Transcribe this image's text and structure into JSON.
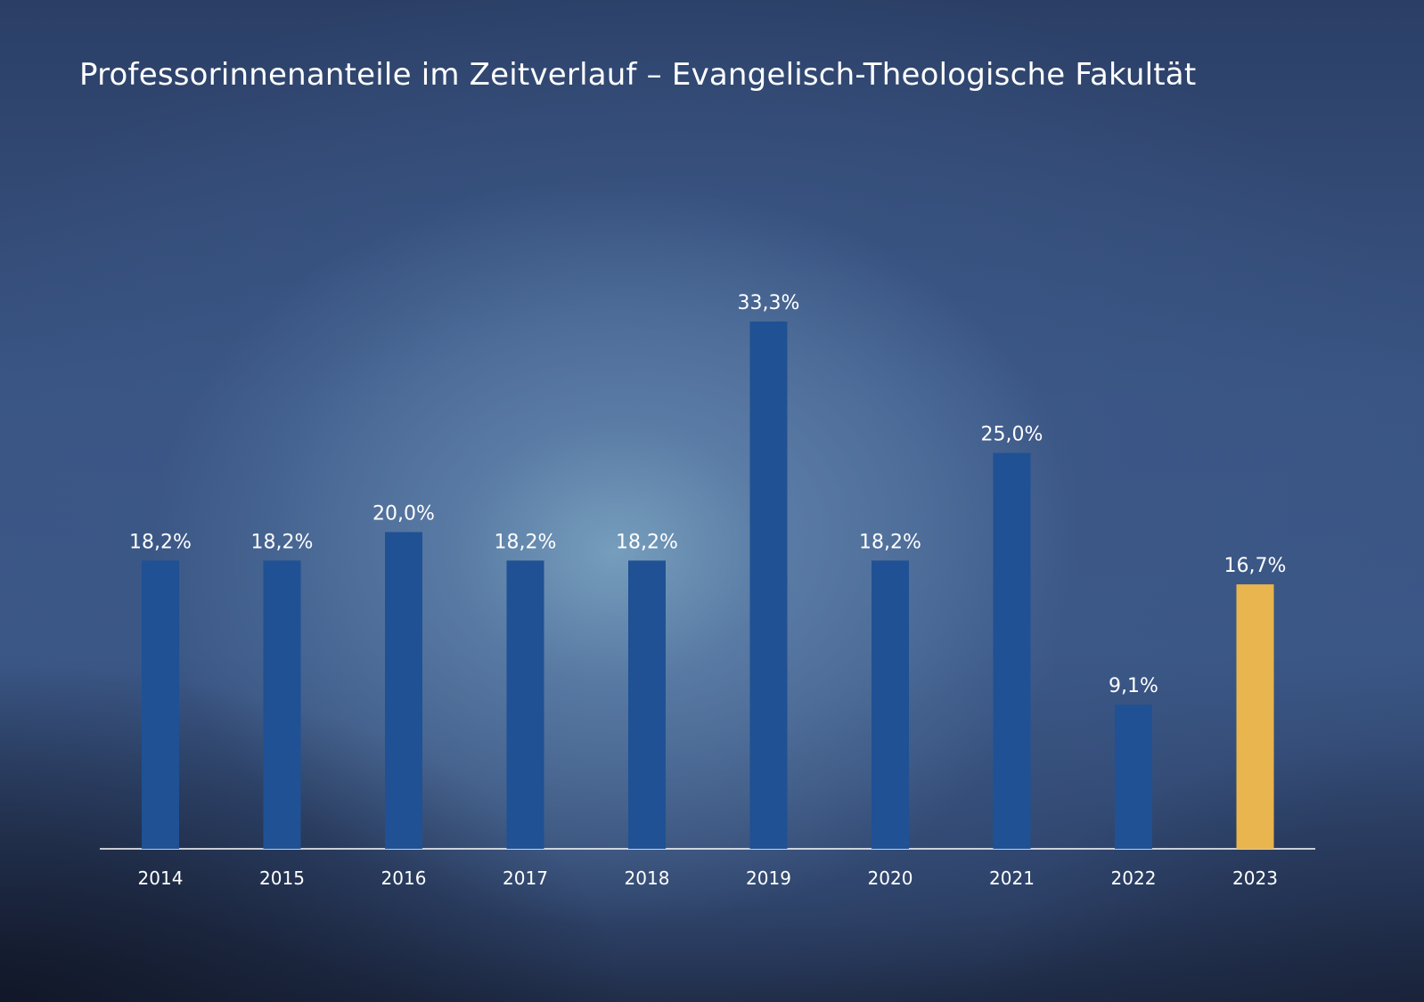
{
  "chart_data": {
    "type": "bar",
    "title": "Professorinnenanteile im Zeitverlauf – Evangelisch-Theologische Fakultät",
    "xlabel": "",
    "ylabel": "",
    "ylim": [
      0,
      33.3
    ],
    "grid": false,
    "categories": [
      "2014",
      "2015",
      "2016",
      "2017",
      "2018",
      "2019",
      "2020",
      "2021",
      "2022",
      "2023"
    ],
    "values": [
      18.2,
      18.2,
      20.0,
      18.2,
      18.2,
      33.3,
      18.2,
      25.0,
      9.1,
      16.7
    ],
    "value_labels": [
      "18,2%",
      "18,2%",
      "20,0%",
      "18,2%",
      "18,2%",
      "33,3%",
      "18,2%",
      "25,0%",
      "9,1%",
      "16,7%"
    ],
    "colors": {
      "default": "#1f5194",
      "highlight": "#e9b54e",
      "axis": "#ffffff",
      "text": "#ffffff"
    },
    "highlight_category": "2023"
  }
}
